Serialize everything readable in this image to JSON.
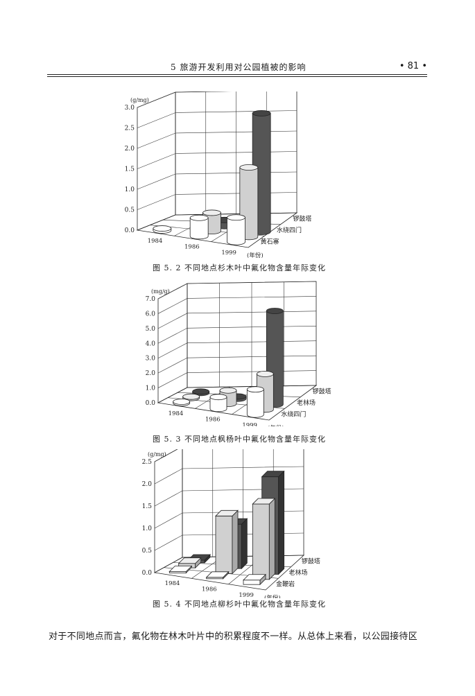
{
  "header": {
    "chapter_title": "5  旅游开发利用对公园植被的影响",
    "page_number": "• 81 •"
  },
  "figures": [
    {
      "caption": "图 5. 2  不同地点杉木叶中氟化物含量年际变化",
      "unit": "(g/mg)",
      "y_ticks": [
        "0.0",
        "0.5",
        "1.0",
        "1.5",
        "2.0",
        "2.5",
        "3.0"
      ],
      "years": [
        "1984",
        "1986",
        "1999"
      ],
      "year_suffix": "(年份)",
      "sites": [
        "黄石寨",
        "水绕四门",
        "锣鼓塔"
      ]
    },
    {
      "caption": "图 5. 3  不同地点枫杨叶中氟化物含量年际变化",
      "unit": "(mg/g)",
      "y_ticks": [
        "0.0",
        "1.0",
        "2.0",
        "3.0",
        "4.0",
        "5.0",
        "6.0",
        "7.0"
      ],
      "years": [
        "1984",
        "1986",
        "1999"
      ],
      "year_suffix": "(年份)",
      "sites": [
        "水绕四门",
        "老林场",
        "锣鼓塔"
      ]
    },
    {
      "caption": "图 5. 4  不同地点柳杉叶中氟化物含量年际变化",
      "unit": "(g/mg)",
      "y_ticks": [
        "0.0",
        "0.5",
        "1.0",
        "1.5",
        "2.0",
        "2.5"
      ],
      "years": [
        "1984",
        "1986",
        "1999"
      ],
      "year_suffix": "(年份)",
      "sites": [
        "金鞭岩",
        "老林场",
        "锣鼓塔"
      ]
    }
  ],
  "body_text": "对于不同地点而言，氟化物在林木叶片中的积累程度不一样。从总体上来看，以公园接待区",
  "chart_data": [
    {
      "type": "bar",
      "style": "3d-cylinder",
      "categories": [
        "1984",
        "1986",
        "1999"
      ],
      "ylim": [
        0,
        3.0
      ],
      "series": [
        {
          "name": "黄石寨",
          "values": [
            0.05,
            0.45,
            0.6
          ]
        },
        {
          "name": "水绕四门",
          "values": [
            null,
            0.45,
            1.7
          ]
        },
        {
          "name": "锣鼓塔",
          "values": [
            null,
            0.15,
            2.9
          ]
        }
      ]
    },
    {
      "type": "bar",
      "style": "3d-cylinder",
      "categories": [
        "1984",
        "1986",
        "1999"
      ],
      "ylim": [
        0,
        7.0
      ],
      "series": [
        {
          "name": "水绕四门",
          "values": [
            0.05,
            0.8,
            1.7
          ]
        },
        {
          "name": "老林场",
          "values": [
            0.05,
            0.9,
            2.4
          ]
        },
        {
          "name": "锣鼓塔",
          "values": [
            0.05,
            0.15,
            6.3
          ]
        }
      ]
    },
    {
      "type": "bar",
      "style": "3d-box",
      "categories": [
        "1984",
        "1986",
        "1999"
      ],
      "ylim": [
        0,
        2.5
      ],
      "series": [
        {
          "name": "金鞭岩",
          "values": [
            0.02,
            0.02,
            0.1
          ]
        },
        {
          "name": "老林场",
          "values": [
            0.1,
            1.3,
            1.7
          ]
        },
        {
          "name": "锣鼓塔",
          "values": [
            0.06,
            1.0,
            2.2
          ]
        }
      ]
    }
  ]
}
